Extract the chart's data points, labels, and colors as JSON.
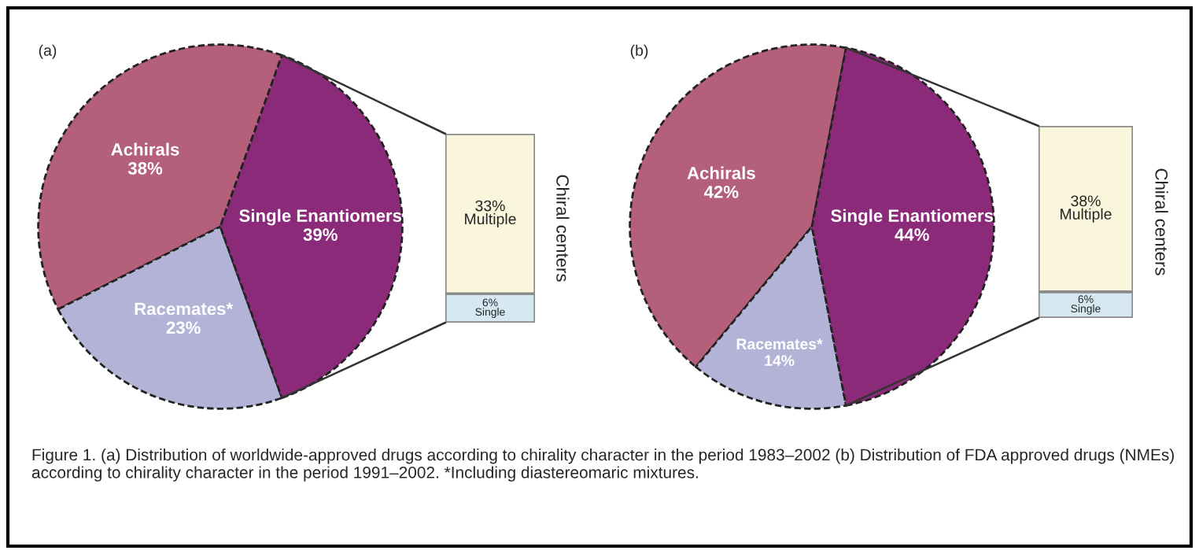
{
  "chart_data": [
    {
      "type": "pie",
      "title": "(a)",
      "categories": [
        "Achirals",
        "Racemates*",
        "Single Enantiomers"
      ],
      "values": [
        38,
        23,
        39
      ],
      "value_labels": [
        "38%",
        "23%",
        "39%"
      ],
      "colors": [
        "#b5607a",
        "#b3b3d8",
        "#8b2a78"
      ]
    },
    {
      "type": "bar",
      "stacked": true,
      "ylabel": "Chiral centers",
      "categories": [
        null
      ],
      "series": [
        {
          "name": "Single",
          "color": "#d6e8f2",
          "values": [
            6
          ],
          "value_labels": [
            "6%"
          ]
        },
        {
          "name": "Multiple",
          "color": "#faf6dc",
          "values": [
            33
          ],
          "value_labels": [
            "33%"
          ]
        }
      ]
    },
    {
      "type": "pie",
      "title": "(b)",
      "categories": [
        "Achirals",
        "Racemates*",
        "Single Enantiomers"
      ],
      "values": [
        42,
        14,
        44
      ],
      "value_labels": [
        "42%",
        "14%",
        "44%"
      ],
      "colors": [
        "#b5607a",
        "#b3b3d8",
        "#8b2a78"
      ]
    },
    {
      "type": "bar",
      "stacked": true,
      "ylabel": "Chiral centers",
      "categories": [
        null
      ],
      "series": [
        {
          "name": "Single",
          "color": "#d6e8f2",
          "values": [
            6
          ],
          "value_labels": [
            "6%"
          ]
        },
        {
          "name": "Multiple",
          "color": "#faf6dc",
          "values": [
            38
          ],
          "value_labels": [
            "38%"
          ]
        }
      ],
      "annotations": [
        "Figure 1. (a) Distribution of worldwide-approved drugs according to chirality character in the period 1983–2002 (b) Distribution of FDA approved drugs (NMEs) according to chirality character in the period 1991–2002. *Including diastereomaric mixtures."
      ]
    }
  ]
}
